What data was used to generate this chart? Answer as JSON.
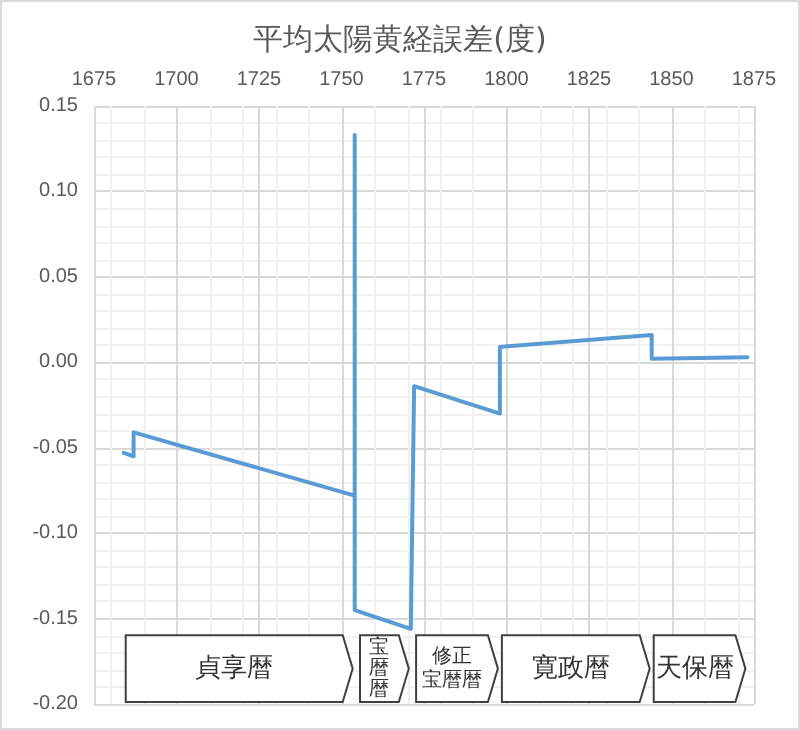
{
  "chart_data": {
    "type": "line",
    "title": "平均太陽黄経誤差(度)",
    "x": [
      1684,
      1687,
      1687,
      1754,
      1754,
      1754,
      1771,
      1772,
      1798,
      1798,
      1844,
      1844,
      1873
    ],
    "series": [
      {
        "color": "#5b9bd5",
        "values": [
          -0.053,
          -0.055,
          -0.041,
          -0.078,
          0.133,
          -0.145,
          -0.156,
          -0.014,
          -0.03,
          0.009,
          0.016,
          0.002,
          0.003
        ]
      }
    ],
    "xlim": [
      1675,
      1875
    ],
    "xticks": [
      1675,
      1700,
      1725,
      1750,
      1775,
      1800,
      1825,
      1850,
      1875
    ],
    "ylim": [
      -0.2,
      0.15
    ],
    "yticks": [
      {
        "value": -0.2,
        "label": "-0.20"
      },
      {
        "value": -0.15,
        "label": "-0.15"
      },
      {
        "value": -0.1,
        "label": "-0.10"
      },
      -0.05,
      {
        "value": 0,
        "label": "0.00"
      },
      0.05,
      {
        "value": 0.1,
        "label": "0.10"
      },
      0.15
    ],
    "bands": [
      {
        "axis": "x",
        "from": 1684,
        "to": 1754,
        "label": "貞享暦"
      },
      {
        "axis": "x",
        "from": 1755,
        "to": 1771,
        "label": "宝暦暦"
      },
      {
        "axis": "x",
        "from": 1772,
        "to": 1798,
        "label": "修正宝暦暦"
      },
      {
        "axis": "x",
        "from": 1798,
        "to": 1844,
        "label": "寛政暦"
      },
      {
        "axis": "x",
        "from": 1844,
        "to": 1873,
        "label": "天保暦"
      }
    ],
    "grid": true,
    "marker": "none",
    "line_style": "solid"
  }
}
